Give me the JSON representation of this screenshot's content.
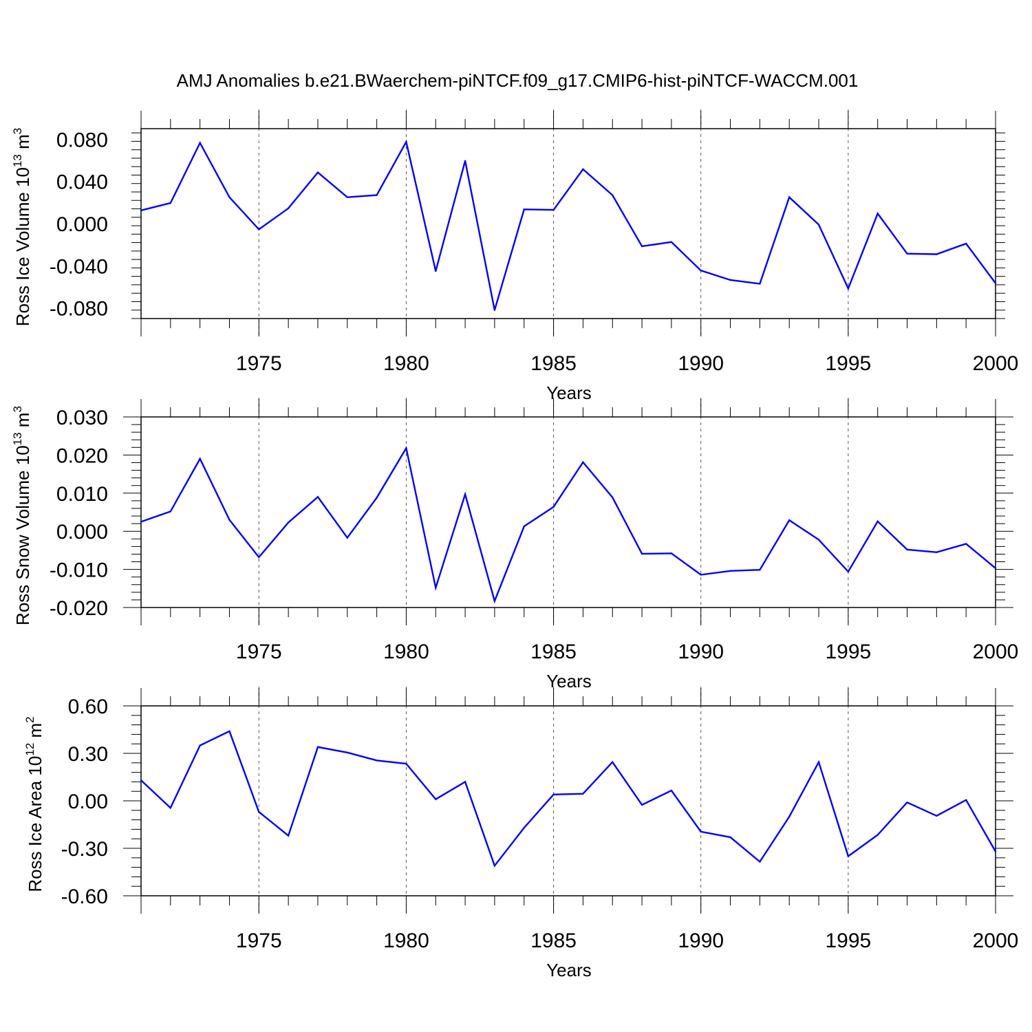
{
  "title": "AMJ Anomalies b.e21.BWaerchem-piNTCF.f09_g17.CMIP6-hist-piNTCF-WACCM.001",
  "chart_data": [
    {
      "type": "line",
      "ylabel": {
        "base": "Ross Ice Volume 10",
        "exp": "13",
        "unit": " m",
        "unit_exp": "3"
      },
      "xlabel": "Years",
      "xlim": [
        1971,
        2000
      ],
      "ylim": [
        -0.09,
        0.09
      ],
      "yticks": [
        -0.08,
        -0.04,
        0.0,
        0.04,
        0.08
      ],
      "ytick_labels": [
        "-0.080",
        "-0.040",
        "0.000",
        "0.040",
        "0.080"
      ],
      "xticks": [
        1975,
        1980,
        1985,
        1990,
        1995,
        2000
      ],
      "xtick_labels": [
        "1975",
        "1980",
        "1985",
        "1990",
        "1995",
        "2000"
      ],
      "grid_years": [
        1975,
        1980,
        1985,
        1990,
        1995
      ],
      "line_color": "#0000ff",
      "x": [
        1971,
        1972,
        1973,
        1974,
        1975,
        1976,
        1977,
        1978,
        1979,
        1980,
        1981,
        1982,
        1983,
        1984,
        1985,
        1986,
        1987,
        1988,
        1989,
        1990,
        1991,
        1992,
        1993,
        1994,
        1995,
        1996,
        1997,
        1998,
        1999,
        2000
      ],
      "values": [
        0.0125,
        0.0195,
        0.0765,
        0.025,
        -0.0055,
        0.0145,
        0.0485,
        0.025,
        0.027,
        0.0775,
        -0.045,
        0.0595,
        -0.082,
        0.0135,
        0.013,
        0.0515,
        0.027,
        -0.0215,
        -0.0175,
        -0.0445,
        -0.0535,
        -0.057,
        0.025,
        -0.001,
        -0.0615,
        0.0095,
        -0.0285,
        -0.029,
        -0.019,
        -0.0565
      ]
    },
    {
      "type": "line",
      "ylabel": {
        "base": "Ross Snow Volume 10",
        "exp": "13",
        "unit": " m",
        "unit_exp": "3"
      },
      "xlabel": "Years",
      "xlim": [
        1971,
        2000
      ],
      "ylim": [
        -0.02,
        0.03
      ],
      "yticks": [
        -0.02,
        -0.01,
        0.0,
        0.01,
        0.02,
        0.03
      ],
      "ytick_labels": [
        "-0.020",
        "-0.010",
        "0.000",
        "0.010",
        "0.020",
        "0.030"
      ],
      "xticks": [
        1975,
        1980,
        1985,
        1990,
        1995,
        2000
      ],
      "xtick_labels": [
        "1975",
        "1980",
        "1985",
        "1990",
        "1995",
        "2000"
      ],
      "grid_years": [
        1975,
        1980,
        1985,
        1990,
        1995
      ],
      "line_color": "#0000ff",
      "x": [
        1971,
        1972,
        1973,
        1974,
        1975,
        1976,
        1977,
        1978,
        1979,
        1980,
        1981,
        1982,
        1983,
        1984,
        1985,
        1986,
        1987,
        1988,
        1989,
        1990,
        1991,
        1992,
        1993,
        1994,
        1995,
        1996,
        1997,
        1998,
        1999,
        2000
      ],
      "values": [
        0.0025,
        0.0052,
        0.019,
        0.003,
        -0.0068,
        0.0023,
        0.009,
        -0.0017,
        0.0088,
        0.0218,
        -0.0148,
        0.0097,
        -0.0183,
        0.0013,
        0.0064,
        0.0181,
        0.0089,
        -0.0059,
        -0.0058,
        -0.0114,
        -0.0104,
        -0.0101,
        0.0029,
        -0.0022,
        -0.0106,
        0.0026,
        -0.0048,
        -0.0055,
        -0.0033,
        -0.0097
      ]
    },
    {
      "type": "line",
      "ylabel": {
        "base": "Ross Ice Area 10",
        "exp": "12",
        "unit": " m",
        "unit_exp": "2"
      },
      "xlabel": "Years",
      "xlim": [
        1971,
        2000
      ],
      "ylim": [
        -0.6,
        0.6
      ],
      "yticks": [
        -0.6,
        -0.3,
        0.0,
        0.3,
        0.6
      ],
      "ytick_labels": [
        "-0.60",
        "-0.30",
        "0.00",
        "0.30",
        "0.60"
      ],
      "xticks": [
        1975,
        1980,
        1985,
        1990,
        1995,
        2000
      ],
      "xtick_labels": [
        "1975",
        "1980",
        "1985",
        "1990",
        "1995",
        "2000"
      ],
      "grid_years": [
        1975,
        1980,
        1985,
        1990,
        1995
      ],
      "line_color": "#0000ff",
      "x": [
        1971,
        1972,
        1973,
        1974,
        1975,
        1976,
        1977,
        1978,
        1979,
        1980,
        1981,
        1982,
        1983,
        1984,
        1985,
        1986,
        1987,
        1988,
        1989,
        1990,
        1991,
        1992,
        1993,
        1994,
        1995,
        1996,
        1997,
        1998,
        1999,
        2000
      ],
      "values": [
        0.13,
        -0.045,
        0.35,
        0.44,
        -0.07,
        -0.22,
        0.34,
        0.305,
        0.255,
        0.235,
        0.01,
        0.12,
        -0.41,
        -0.17,
        0.04,
        0.045,
        0.245,
        -0.025,
        0.065,
        -0.195,
        -0.23,
        -0.385,
        -0.1,
        0.245,
        -0.35,
        -0.215,
        -0.01,
        -0.095,
        0.005,
        -0.32
      ]
    }
  ]
}
